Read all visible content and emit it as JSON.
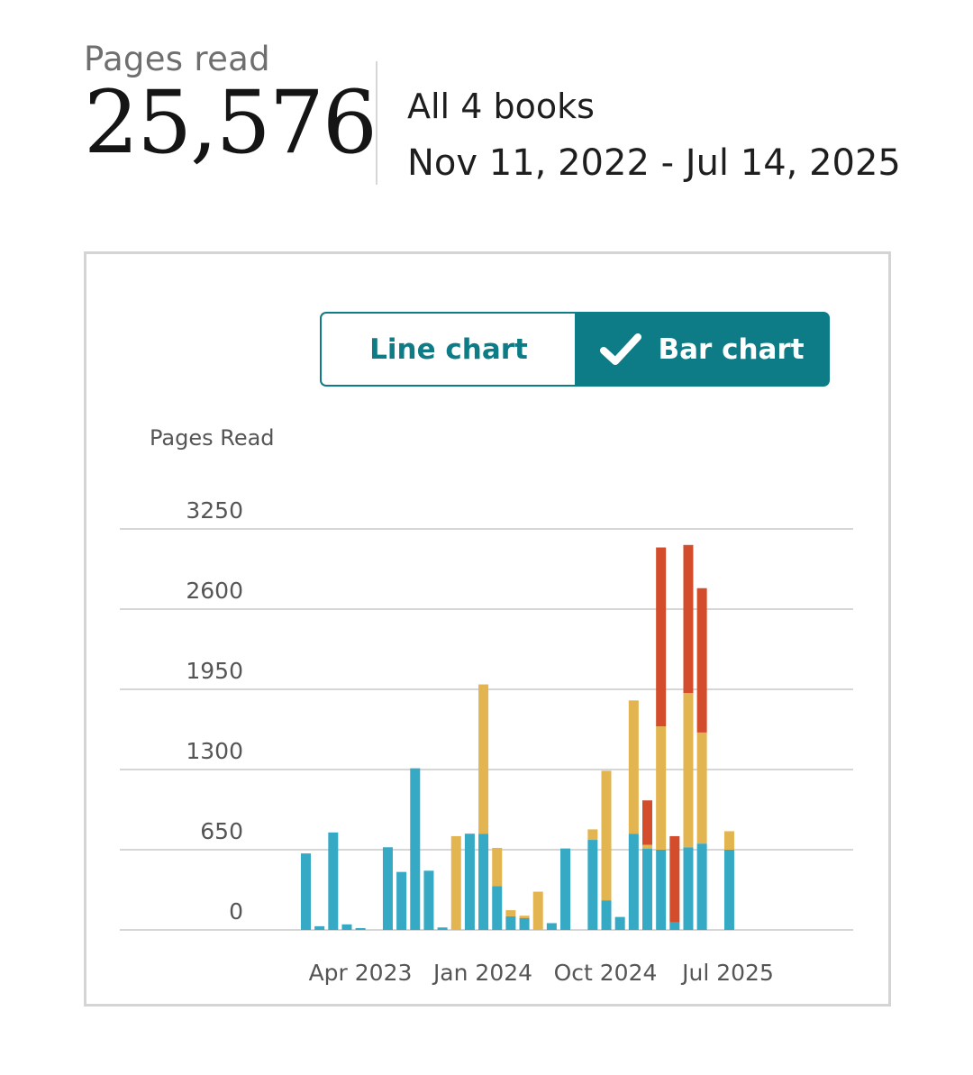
{
  "summary": {
    "label": "Pages read",
    "value": "25,576",
    "scope": "All 4 books",
    "date_range": "Nov 11, 2022 - Jul 14, 2025"
  },
  "toggle": {
    "line_label": "Line chart",
    "bar_label": "Bar chart",
    "selected": "bar"
  },
  "colors": {
    "accent": "#0e7c86",
    "book1": "#36a9c5",
    "book2": "#e3b550",
    "book3": "#d34d2c",
    "grid": "#d6d6d6"
  },
  "chart_data": {
    "type": "bar",
    "stacked": true,
    "ylabel": "Pages Read",
    "ylim": [
      0,
      3250
    ],
    "yticks": [
      "3250",
      "2600",
      "1950",
      "1300",
      "650",
      "0"
    ],
    "xticks": [
      "Apr 2023",
      "Jan 2024",
      "Oct 2024",
      "Jul 2025"
    ],
    "grid": true,
    "series": [
      {
        "color": "#36a9c5",
        "values": [
          620,
          30,
          790,
          45,
          15,
          0,
          670,
          470,
          1310,
          480,
          20,
          0,
          780,
          780,
          355,
          110,
          95,
          0,
          55,
          660,
          0,
          730,
          240,
          105,
          780,
          660,
          650,
          60,
          670,
          700,
          0,
          650
        ]
      },
      {
        "color": "#e3b550",
        "values": [
          0,
          0,
          0,
          0,
          0,
          0,
          0,
          0,
          0,
          0,
          0,
          760,
          0,
          1210,
          310,
          50,
          20,
          310,
          0,
          0,
          0,
          85,
          1050,
          0,
          1080,
          30,
          1000,
          0,
          1250,
          900,
          0,
          150
        ]
      },
      {
        "color": "#d34d2c",
        "values": [
          0,
          0,
          0,
          0,
          0,
          0,
          0,
          0,
          0,
          0,
          0,
          0,
          0,
          0,
          0,
          0,
          0,
          0,
          0,
          0,
          0,
          0,
          0,
          0,
          0,
          360,
          1450,
          700,
          1200,
          1170,
          0,
          0
        ]
      }
    ]
  }
}
